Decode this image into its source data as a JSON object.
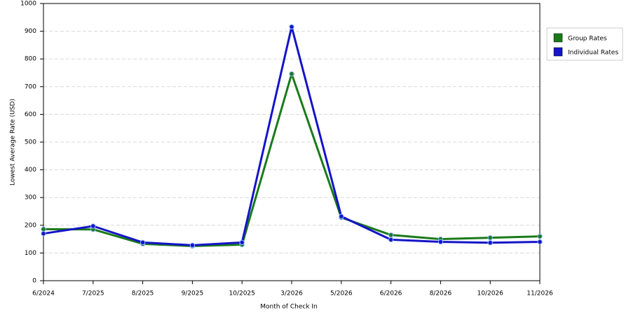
{
  "chart_data": {
    "type": "line",
    "categories": [
      "6/2024",
      "7/2025",
      "8/2025",
      "9/2025",
      "10/2025",
      "3/2026",
      "5/2026",
      "6/2026",
      "8/2026",
      "10/2026",
      "11/2026"
    ],
    "series": [
      {
        "name": "Group Rates",
        "color": "#1a7a1a",
        "values": [
          186,
          185,
          133,
          125,
          130,
          746,
          228,
          165,
          150,
          155,
          160
        ]
      },
      {
        "name": "Individual Rates",
        "color": "#1414c8",
        "values": [
          170,
          197,
          138,
          128,
          138,
          916,
          232,
          148,
          140,
          137,
          140
        ]
      }
    ],
    "ylim": [
      0,
      1000
    ],
    "yticks": [
      0,
      100,
      200,
      300,
      400,
      500,
      600,
      700,
      800,
      900,
      1000
    ],
    "xlabel": "Month of Check In",
    "ylabel": "Lowest Average Rate (USD)",
    "grid": true,
    "legend": "top-right"
  }
}
